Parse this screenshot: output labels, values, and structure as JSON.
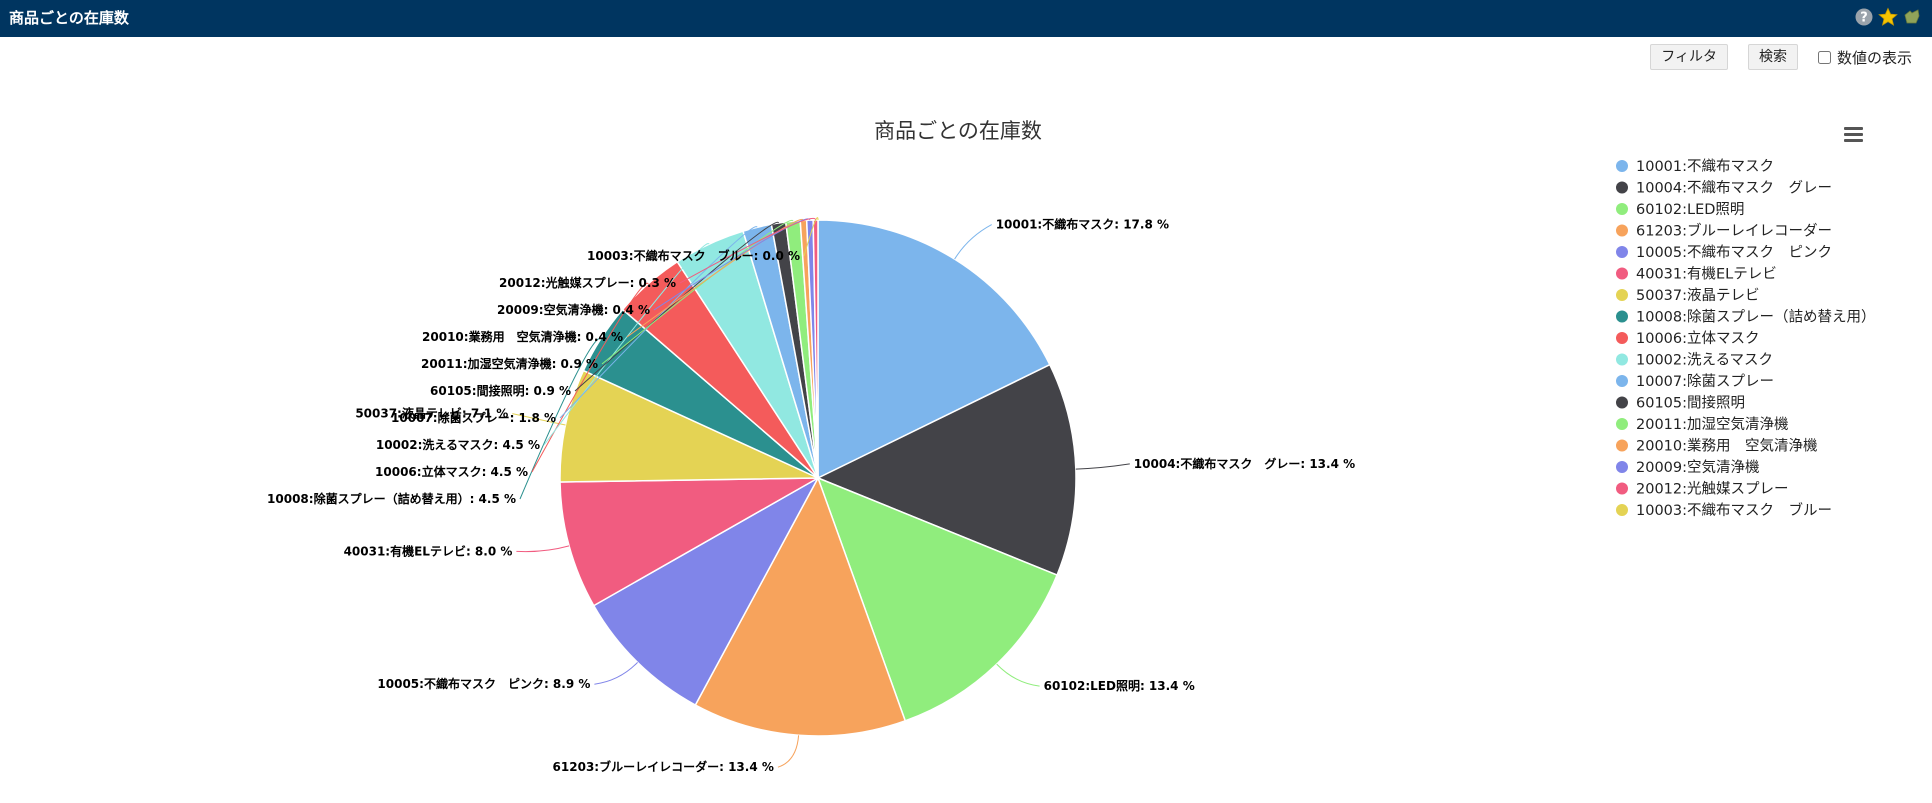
{
  "header": {
    "title": "商品ごとの在庫数",
    "icons": [
      "help-icon",
      "star-icon",
      "bookmark-icon"
    ]
  },
  "toolbar": {
    "filter_label": "フィルタ",
    "search_label": "検索",
    "show_values_label": "数値の表示",
    "show_values_checked": false
  },
  "menu_icon": "hamburger-menu-icon",
  "chart_data": {
    "type": "pie",
    "title": "商品ごとの在庫数",
    "legend_position": "right",
    "slices": [
      {
        "label": "10001:不織布マスク",
        "value": 17.8,
        "color": "#7cb5ec"
      },
      {
        "label": "10004:不織布マスク　グレー",
        "value": 13.4,
        "color": "#434348"
      },
      {
        "label": "60102:LED照明",
        "value": 13.4,
        "color": "#90ed7d"
      },
      {
        "label": "61203:ブルーレイレコーダー",
        "value": 13.4,
        "color": "#f7a35c"
      },
      {
        "label": "10005:不織布マスク　ピンク",
        "value": 8.9,
        "color": "#8085e9"
      },
      {
        "label": "40031:有機ELテレビ",
        "value": 8.0,
        "color": "#f15c80"
      },
      {
        "label": "50037:液晶テレビ",
        "value": 7.1,
        "color": "#e4d354"
      },
      {
        "label": "10008:除菌スプレー（詰め替え用）",
        "value": 4.5,
        "color": "#2b908f"
      },
      {
        "label": "10006:立体マスク",
        "value": 4.5,
        "color": "#f45b5b"
      },
      {
        "label": "10002:洗えるマスク",
        "value": 4.5,
        "color": "#91e8e1"
      },
      {
        "label": "10007:除菌スプレー",
        "value": 1.8,
        "color": "#7cb5ec"
      },
      {
        "label": "60105:間接照明",
        "value": 0.9,
        "color": "#434348"
      },
      {
        "label": "20011:加湿空気清浄機",
        "value": 0.9,
        "color": "#90ed7d"
      },
      {
        "label": "20010:業務用　空気清浄機",
        "value": 0.4,
        "color": "#f7a35c"
      },
      {
        "label": "20009:空気清浄機",
        "value": 0.4,
        "color": "#8085e9"
      },
      {
        "label": "20012:光触媒スプレー",
        "value": 0.3,
        "color": "#f15c80"
      },
      {
        "label": "10003:不織布マスク　ブルー",
        "value": 0.0,
        "color": "#e4d354"
      }
    ],
    "value_suffix": " %"
  }
}
